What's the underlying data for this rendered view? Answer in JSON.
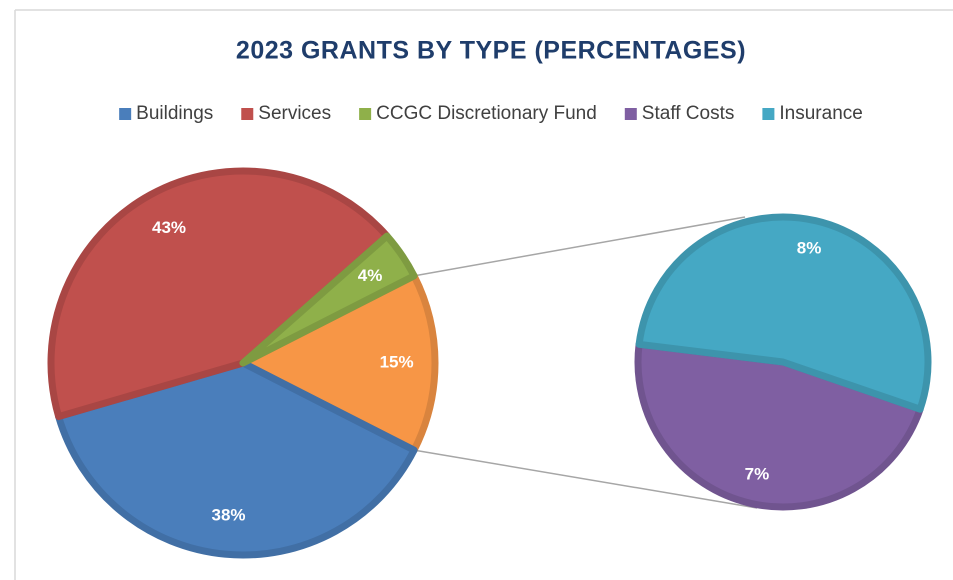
{
  "chart_data": {
    "type": "pie_of_pie",
    "title": "2023 GRANTS BY TYPE (PERCENTAGES)",
    "categories": [
      "Buildings",
      "Services",
      "CCGC Discretionary Fund",
      "Staff Costs",
      "Insurance"
    ],
    "values": [
      38,
      43,
      4,
      7,
      8
    ],
    "value_labels": [
      "38%",
      "43%",
      "4%",
      "7%",
      "8%"
    ],
    "colors": [
      "#4a7ebb",
      "#c0504d",
      "#8fb04a",
      "#7f5fa2",
      "#45a8c4"
    ],
    "secondary_count": 2,
    "other_value": 15,
    "other_label": "15%",
    "other_color": "#f79646",
    "legend": "top"
  }
}
